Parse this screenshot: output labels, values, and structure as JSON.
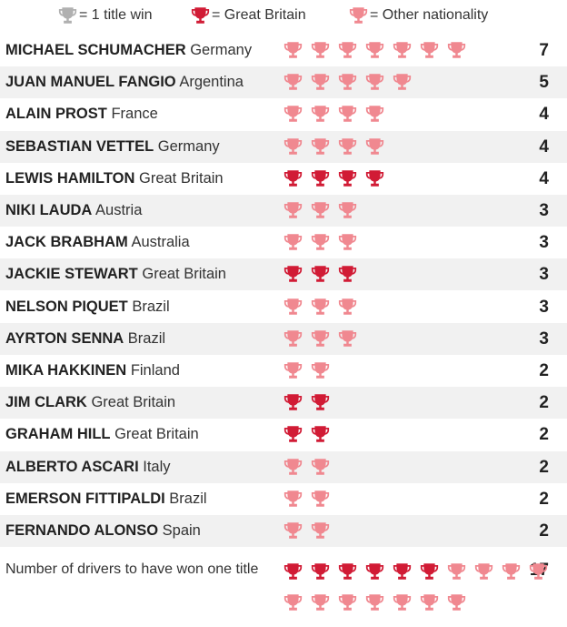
{
  "colors": {
    "grey": "#b0b0b0",
    "gb": "#d11b35",
    "other": "#f08890",
    "stripe": "#f1f1f1"
  },
  "legend": [
    {
      "icon": "trophy-icon-grey",
      "color": "#b0b0b0",
      "label": "= 1 title win"
    },
    {
      "icon": "trophy-icon-gb",
      "color": "#d11b35",
      "label": "= Great Britain"
    },
    {
      "icon": "trophy-icon-other",
      "color": "#f08890",
      "label": "= Other nationality"
    }
  ],
  "chart_data": {
    "type": "table",
    "rows": [
      {
        "name": "MICHAEL SCHUMACHER",
        "nationality": "Germany",
        "titles": 7,
        "gb": false
      },
      {
        "name": "JUAN MANUEL FANGIO",
        "nationality": "Argentina",
        "titles": 5,
        "gb": false
      },
      {
        "name": "ALAIN PROST",
        "nationality": "France",
        "titles": 4,
        "gb": false
      },
      {
        "name": "SEBASTIAN VETTEL",
        "nationality": "Germany",
        "titles": 4,
        "gb": false
      },
      {
        "name": "LEWIS HAMILTON",
        "nationality": "Great Britain",
        "titles": 4,
        "gb": true
      },
      {
        "name": "NIKI LAUDA",
        "nationality": "Austria",
        "titles": 3,
        "gb": false
      },
      {
        "name": "JACK BRABHAM",
        "nationality": "Australia",
        "titles": 3,
        "gb": false
      },
      {
        "name": "JACKIE STEWART",
        "nationality": "Great Britain",
        "titles": 3,
        "gb": true
      },
      {
        "name": "NELSON PIQUET",
        "nationality": "Brazil",
        "titles": 3,
        "gb": false
      },
      {
        "name": "AYRTON SENNA",
        "nationality": "Brazil",
        "titles": 3,
        "gb": false
      },
      {
        "name": "MIKA HAKKINEN",
        "nationality": "Finland",
        "titles": 2,
        "gb": false
      },
      {
        "name": "JIM CLARK",
        "nationality": "Great Britain",
        "titles": 2,
        "gb": true
      },
      {
        "name": "GRAHAM HILL",
        "nationality": "Great Britain",
        "titles": 2,
        "gb": true
      },
      {
        "name": "ALBERTO ASCARI",
        "nationality": "Italy",
        "titles": 2,
        "gb": false
      },
      {
        "name": "EMERSON FITTIPALDI",
        "nationality": "Brazil",
        "titles": 2,
        "gb": false
      },
      {
        "name": "FERNANDO ALONSO",
        "nationality": "Spain",
        "titles": 2,
        "gb": false
      }
    ],
    "summary": {
      "label": "Number of drivers to have won one title",
      "value": 17,
      "gb_count": 6,
      "other_count": 11
    }
  }
}
